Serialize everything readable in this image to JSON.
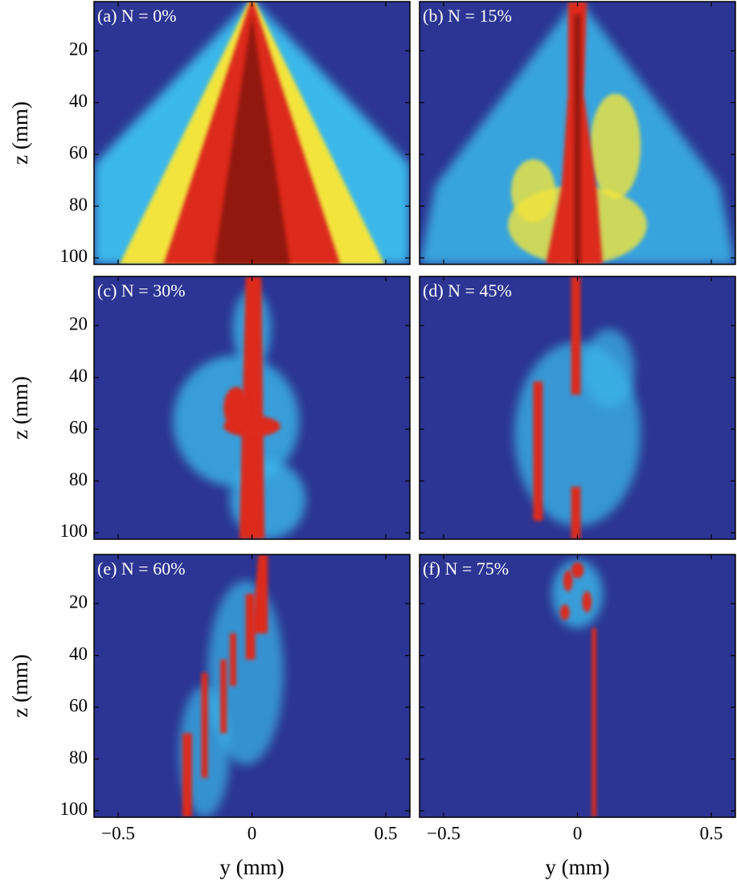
{
  "chart_data": [
    {
      "type": "heatmap",
      "label": "(a) N = 0%",
      "ylabel": "z (mm)",
      "xlim": [
        -0.59,
        0.59
      ],
      "ylim": [
        102.5,
        1
      ],
      "xticks": [
        -0.5,
        0,
        0.5
      ],
      "yticks": [
        20,
        40,
        60,
        80,
        100
      ]
    },
    {
      "type": "heatmap",
      "label": "(b) N = 15%",
      "xlim": [
        -0.59,
        0.59
      ],
      "ylim": [
        102.5,
        1
      ],
      "xticks": [
        -0.5,
        0,
        0.5
      ],
      "yticks": [
        20,
        40,
        60,
        80,
        100
      ]
    },
    {
      "type": "heatmap",
      "label": "(c) N = 30%",
      "ylabel": "z (mm)",
      "xlim": [
        -0.59,
        0.59
      ],
      "ylim": [
        102.5,
        1
      ],
      "xticks": [
        -0.5,
        0,
        0.5
      ],
      "yticks": [
        20,
        40,
        60,
        80,
        100
      ]
    },
    {
      "type": "heatmap",
      "label": "(d) N = 45%",
      "xlim": [
        -0.59,
        0.59
      ],
      "ylim": [
        102.5,
        1
      ],
      "xticks": [
        -0.5,
        0,
        0.5
      ],
      "yticks": [
        20,
        40,
        60,
        80,
        100
      ]
    },
    {
      "type": "heatmap",
      "label": "(e) N = 60%",
      "ylabel": "z (mm)",
      "xlabel": "y (mm)",
      "xlim": [
        -0.59,
        0.59
      ],
      "ylim": [
        102.5,
        1
      ],
      "xticks": [
        {
          "value": -0.5,
          "label": "−0.5"
        },
        0,
        0.5
      ],
      "yticks": [
        20,
        40,
        60,
        80,
        100
      ]
    },
    {
      "type": "heatmap",
      "label": "(f) N = 75%",
      "xlabel": "y (mm)",
      "xlim": [
        -0.59,
        0.59
      ],
      "ylim": [
        102.5,
        1
      ],
      "xticks": [
        {
          "value": -0.5,
          "label": "−0.5"
        },
        0,
        0.5
      ],
      "yticks": [
        20,
        40,
        60,
        80,
        100
      ]
    }
  ]
}
